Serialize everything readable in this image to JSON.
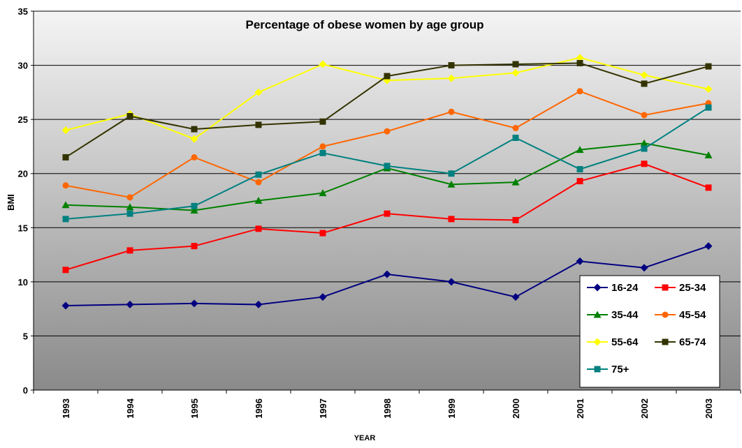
{
  "chart_data": {
    "type": "line",
    "title": "Percentage of obese women by age group",
    "x_label": "YEAR",
    "y_label": "BMI",
    "categories": [
      "1993",
      "1994",
      "1995",
      "1996",
      "1997",
      "1998",
      "1999",
      "2000",
      "2001",
      "2002",
      "2003"
    ],
    "ylim": [
      0,
      35
    ],
    "yticks": [
      0,
      5,
      10,
      15,
      20,
      25,
      30,
      35
    ],
    "grid": true,
    "legend": "lower right",
    "series": [
      {
        "name": "16-24",
        "color": "#000080",
        "marker": "diamond",
        "values": [
          7.8,
          7.9,
          8.0,
          7.9,
          8.6,
          10.7,
          10.0,
          8.6,
          11.9,
          11.3,
          13.3
        ]
      },
      {
        "name": "25-34",
        "color": "#ff0000",
        "marker": "square",
        "values": [
          11.1,
          12.9,
          13.3,
          14.9,
          14.5,
          16.3,
          15.8,
          15.7,
          19.3,
          20.9,
          18.7
        ]
      },
      {
        "name": "35-44",
        "color": "#008000",
        "marker": "triangle",
        "values": [
          17.1,
          16.9,
          16.6,
          17.5,
          18.2,
          20.5,
          19.0,
          19.2,
          22.2,
          22.8,
          21.7
        ]
      },
      {
        "name": "45-54",
        "color": "#ff6600",
        "marker": "circle",
        "values": [
          18.9,
          17.8,
          21.5,
          19.2,
          22.5,
          23.9,
          25.7,
          24.2,
          27.6,
          25.4,
          26.5
        ]
      },
      {
        "name": "55-64",
        "color": "#ffff00",
        "marker": "diamond",
        "values": [
          24.0,
          25.5,
          23.2,
          27.5,
          30.1,
          28.6,
          28.8,
          29.3,
          30.7,
          29.1,
          27.8
        ]
      },
      {
        "name": "65-74",
        "color": "#333300",
        "marker": "square",
        "values": [
          21.5,
          25.3,
          24.1,
          24.5,
          24.8,
          29.0,
          30.0,
          30.1,
          30.2,
          28.3,
          29.9
        ]
      },
      {
        "name": "75+",
        "color": "#008080",
        "marker": "square",
        "values": [
          15.8,
          16.3,
          17.0,
          19.9,
          21.9,
          20.7,
          20.0,
          23.3,
          20.4,
          22.3,
          26.1
        ]
      }
    ]
  }
}
